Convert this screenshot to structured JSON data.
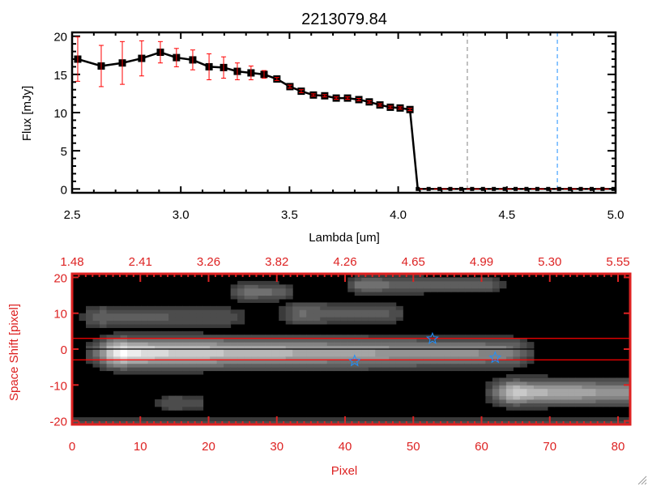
{
  "chart_data": [
    {
      "type": "line",
      "title": "2213079.84",
      "xlabel": "Lambda [um]",
      "ylabel": "Flux [mJy]",
      "xlim": [
        2.5,
        5.0
      ],
      "ylim": [
        -0.5,
        20.5
      ],
      "xticks": [
        "2.5",
        "3.0",
        "3.5",
        "4.0",
        "4.5",
        "5.0"
      ],
      "yticks": [
        "0",
        "5",
        "10",
        "15",
        "20"
      ],
      "grid": false,
      "series": [
        {
          "name": "flux",
          "x": [
            2.526,
            2.634,
            2.731,
            2.82,
            2.906,
            2.98,
            3.055,
            3.13,
            3.197,
            3.26,
            3.323,
            3.383,
            3.442,
            3.502,
            3.554,
            3.61,
            3.662,
            3.715,
            3.767,
            3.819,
            3.867,
            3.916,
            3.964,
            4.009,
            4.054,
            4.09,
            4.14,
            4.19,
            4.24,
            4.29,
            4.34,
            4.39,
            4.44,
            4.49,
            4.54,
            4.59,
            4.64,
            4.69,
            4.74,
            4.79,
            4.84,
            4.89,
            4.94,
            4.99
          ],
          "y": [
            17.0,
            16.1,
            16.5,
            17.1,
            17.9,
            17.2,
            16.9,
            16.0,
            15.9,
            15.4,
            15.2,
            15.0,
            14.4,
            13.4,
            12.8,
            12.3,
            12.2,
            11.9,
            11.9,
            11.7,
            11.4,
            11.0,
            10.7,
            10.6,
            10.4,
            0,
            0,
            0,
            0,
            0,
            0,
            0,
            0,
            0,
            0,
            0,
            0,
            0,
            0,
            0,
            0,
            0,
            0,
            0
          ],
          "err": [
            2.9,
            2.7,
            2.8,
            2.3,
            1.4,
            1.2,
            1.3,
            1.7,
            1.4,
            1.1,
            0.9,
            0.5,
            0.2,
            0.2,
            0.2,
            0.15,
            0.15,
            0.15,
            0.15,
            0.15,
            0.15,
            0.15,
            0.15,
            0.15,
            0.15,
            0,
            0,
            0,
            0,
            0,
            0,
            0,
            0,
            0,
            0,
            0,
            0,
            0,
            0,
            0,
            0,
            0,
            0,
            0
          ],
          "color": "#000000",
          "error_color": "#ff0000"
        }
      ],
      "vlines": [
        {
          "x": 4.318,
          "color": "#808080",
          "style": "dashed"
        },
        {
          "x": 4.732,
          "color": "#1e90ff",
          "style": "dashed"
        }
      ]
    },
    {
      "type": "heatmap",
      "xlabel": "Pixel",
      "ylabel": "Space Shift [pixel]",
      "xlim": [
        0,
        81
      ],
      "ylim": [
        -21,
        21
      ],
      "xticks": [
        "0",
        "10",
        "20",
        "30",
        "40",
        "50",
        "60",
        "70",
        "80"
      ],
      "yticks": [
        "-20",
        "-10",
        "0",
        "10",
        "20"
      ],
      "top_xticks": [
        "1.48",
        "2.41",
        "3.26",
        "3.82",
        "4.26",
        "4.65",
        "4.99",
        "5.30",
        "5.55"
      ],
      "axis_color": "#dd2222",
      "colormap": "gray",
      "sources": [
        {
          "x0": 7,
          "x1": 62,
          "y": -1,
          "peak": 1.0,
          "tail": 0.45,
          "sigma": 2.6
        },
        {
          "x0": 64,
          "x1": 81,
          "y": -12,
          "peak": 0.8,
          "tail": 0.5,
          "sigma": 2.2
        },
        {
          "x0": 25,
          "x1": 29,
          "y": 16,
          "peak": 0.35,
          "tail": 0.3,
          "sigma": 1.6
        },
        {
          "x0": 42,
          "x1": 60,
          "y": 18,
          "peak": 0.38,
          "tail": 0.22,
          "sigma": 1.6
        },
        {
          "x0": 33,
          "x1": 45,
          "y": 10,
          "peak": 0.33,
          "tail": 0.22,
          "sigma": 2.0
        },
        {
          "x0": 4,
          "x1": 22,
          "y": 9,
          "peak": 0.3,
          "tail": 0.18,
          "sigma": 2.0
        },
        {
          "x0": 14,
          "x1": 17,
          "y": -15,
          "peak": 0.22,
          "tail": 0.2,
          "sigma": 1.5
        },
        {
          "x0": 0,
          "x1": 81,
          "y": -20.5,
          "peak": 0.18,
          "tail": 0.14,
          "sigma": 1.0
        }
      ],
      "hlines": [
        {
          "y": 3,
          "color": "#ff0000"
        },
        {
          "y": 0,
          "color": "#000000"
        },
        {
          "y": -3,
          "color": "#ff0000"
        }
      ],
      "markers": [
        {
          "x": 41,
          "y": -3.3,
          "symbol": "star",
          "color": "#1e90ff"
        },
        {
          "x": 52.3,
          "y": 2.9,
          "symbol": "star",
          "color": "#1e90ff"
        },
        {
          "x": 61.4,
          "y": -2.4,
          "symbol": "star",
          "color": "#1e90ff"
        }
      ]
    }
  ]
}
